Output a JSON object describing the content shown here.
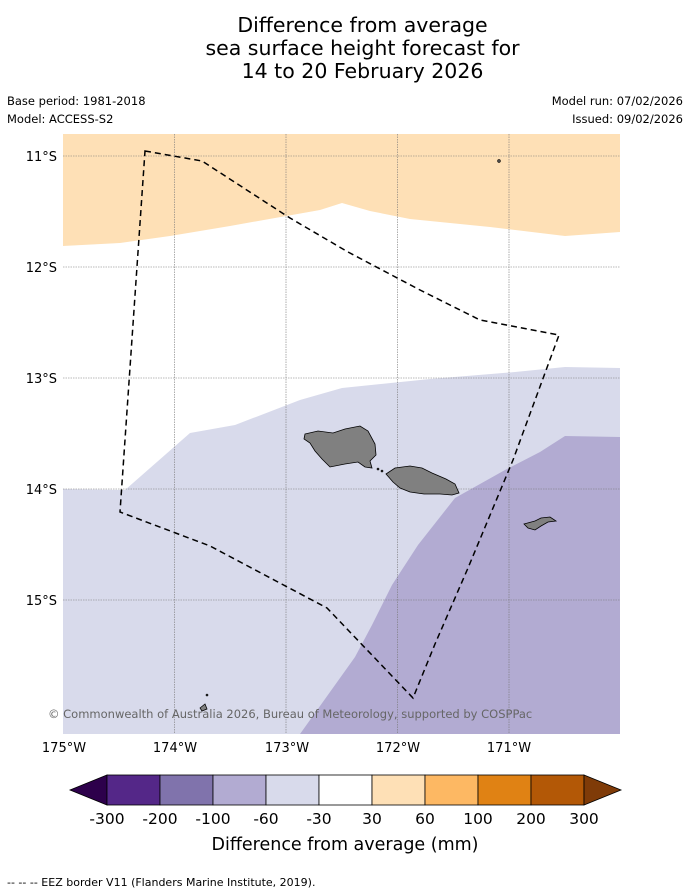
{
  "title": {
    "line1": "Difference from average",
    "line2": "sea surface height forecast for",
    "line3": "14 to 20 February 2026"
  },
  "meta": {
    "base_period": "Base period: 1981-2018",
    "model": "Model: ACCESS-S2",
    "model_run": "Model run: 07/02/2026",
    "issued": "Issued: 09/02/2026"
  },
  "map": {
    "lat_labels": [
      "11°S",
      "12°S",
      "13°S",
      "14°S",
      "15°S"
    ],
    "lon_labels": [
      "175°W",
      "174°W",
      "173°W",
      "172°W",
      "171°W"
    ],
    "copyright": "© Commonwealth of Australia 2026, Bureau of Meteorology, supported by COSPPac"
  },
  "colorbar": {
    "ticks": [
      "-300",
      "-200",
      "-100",
      "-60",
      "-30",
      "30",
      "60",
      "100",
      "200",
      "300"
    ],
    "colors": [
      "#2d004b",
      "#542788",
      "#8073ac",
      "#b2abd2",
      "#d8daeb",
      "#ffffff",
      "#fee0b6",
      "#fdb863",
      "#e08214",
      "#b35806",
      "#7f3b08"
    ],
    "label": "Difference from average (mm)"
  },
  "footnote": "--  --  -- EEZ border V11 (Flanders Marine Institute, 2019)."
}
